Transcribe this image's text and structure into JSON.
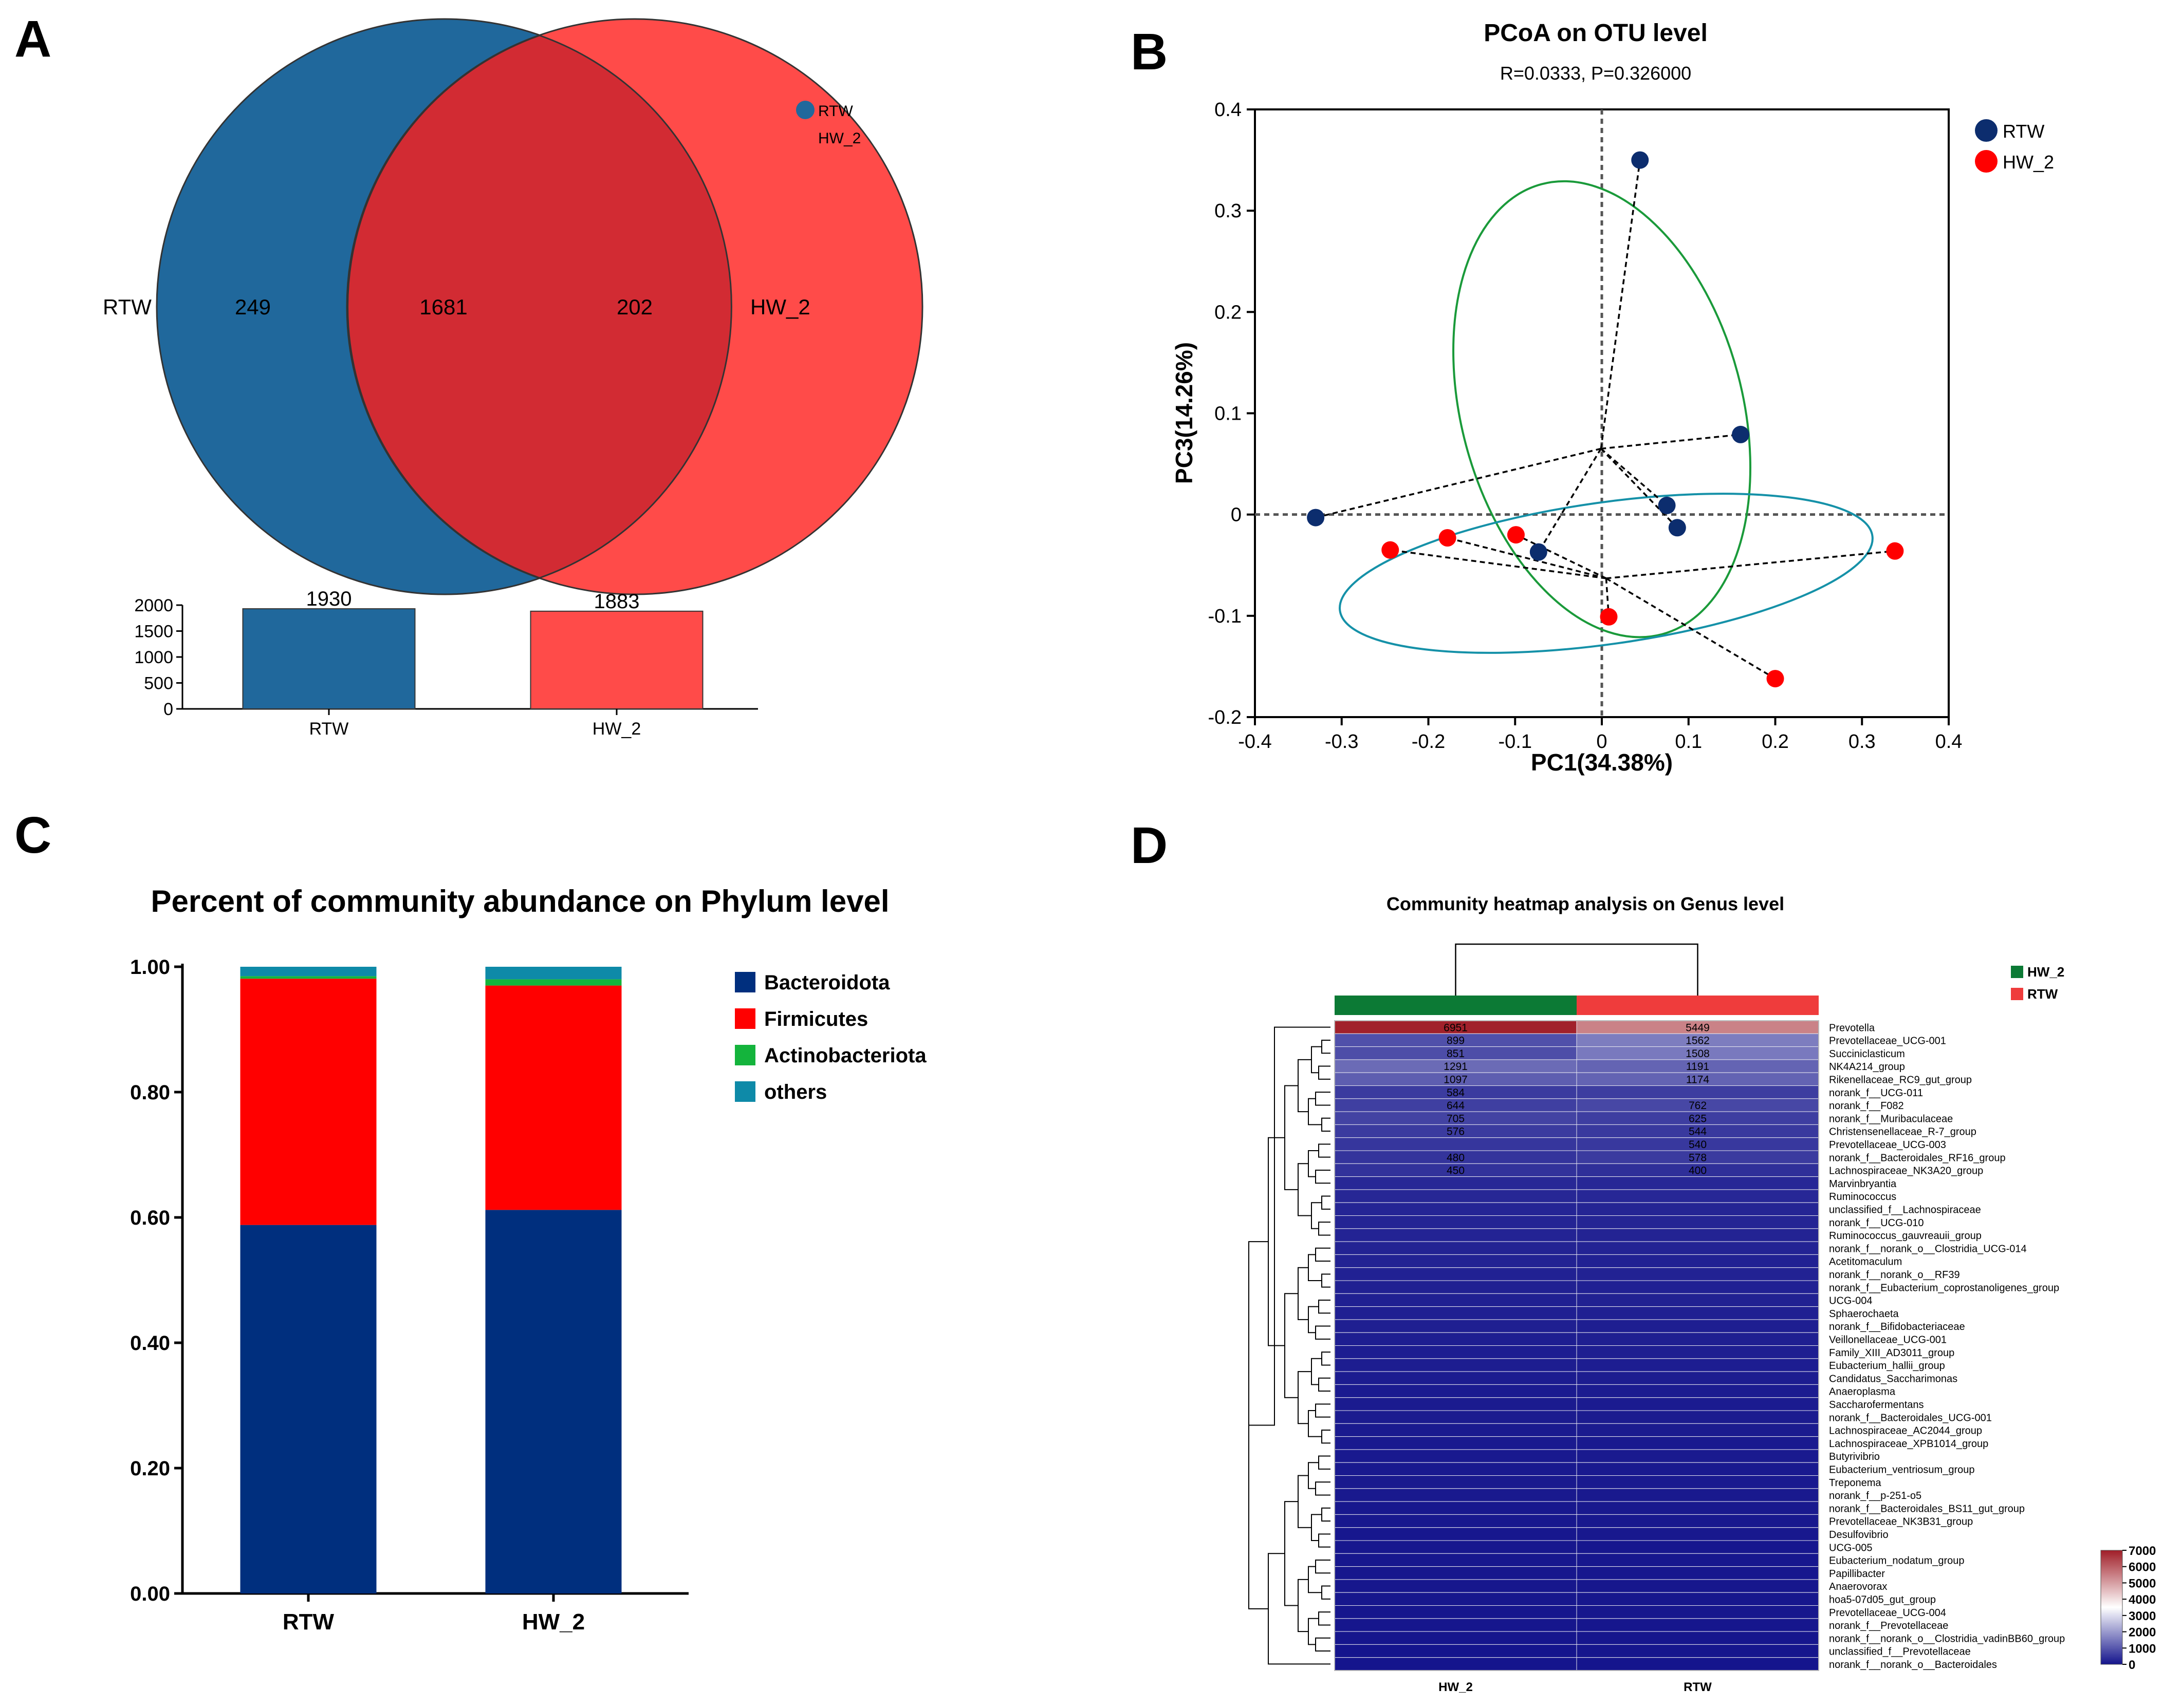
{
  "panel_labels": {
    "a": "A",
    "b": "B",
    "c": "C",
    "d": "D"
  },
  "colors": {
    "rtw_venn": "#20689c",
    "hw2_venn": "#ff4b49",
    "overlap": "#d22b33",
    "rtw_point": "#0c2d6e",
    "hw2_point": "#ff0000",
    "ellipse_rtw": "#1a9a3a",
    "ellipse_hw2": "#1591a8",
    "bacteroidota": "#002f7e",
    "firmicutes": "#ff0000",
    "actinobacteriota": "#14b43c",
    "others": "#0e8aa8",
    "hw2_group": "#0c7a35",
    "rtw_group": "#ef3c3c"
  },
  "chart_data": [
    {
      "type": "venn",
      "panel": "A",
      "sets": [
        {
          "name": "RTW",
          "unique": "249"
        },
        {
          "name": "HW_2",
          "unique": "202"
        }
      ],
      "overlap": "1681",
      "legend": [
        "RTW",
        "HW_2"
      ],
      "bar": {
        "type": "bar",
        "categories": [
          "RTW",
          "HW_2"
        ],
        "values": [
          1930,
          1883
        ],
        "value_labels": [
          "1930",
          "1883"
        ],
        "ylim": [
          0,
          2000
        ],
        "yticks": [
          {
            "v": 0,
            "t": "0"
          },
          {
            "v": 500,
            "t": "500"
          },
          {
            "v": 1000,
            "t": "1000"
          },
          {
            "v": 1500,
            "t": "1500"
          },
          {
            "v": 2000,
            "t": "2000"
          }
        ]
      }
    },
    {
      "type": "scatter",
      "panel": "B",
      "title": "PCoA on OTU level",
      "subtitle": "R=0.0333, P=0.326000",
      "xlabel": "PC1(34.38%)",
      "ylabel": "PC3(14.26%)",
      "xlim": [
        -0.4,
        0.4
      ],
      "ylim": [
        -0.2,
        0.4
      ],
      "xticks": [
        {
          "v": -0.4,
          "t": "-0.4"
        },
        {
          "v": -0.3,
          "t": "-0.3"
        },
        {
          "v": -0.2,
          "t": "-0.2"
        },
        {
          "v": -0.1,
          "t": "-0.1"
        },
        {
          "v": 0,
          "t": "0"
        },
        {
          "v": 0.1,
          "t": "0.1"
        },
        {
          "v": 0.2,
          "t": "0.2"
        },
        {
          "v": 0.3,
          "t": "0.3"
        },
        {
          "v": 0.4,
          "t": "0.4"
        }
      ],
      "yticks": [
        {
          "v": -0.2,
          "t": "-0.2"
        },
        {
          "v": -0.1,
          "t": "-0.1"
        },
        {
          "v": 0,
          "t": "0"
        },
        {
          "v": 0.1,
          "t": "0.1"
        },
        {
          "v": 0.2,
          "t": "0.2"
        },
        {
          "v": 0.3,
          "t": "0.3"
        },
        {
          "v": 0.4,
          "t": "0.4"
        }
      ],
      "series": [
        {
          "name": "RTW",
          "centroid": [
            -0.001,
            0.065
          ],
          "ellipse": {
            "cx": 0.0,
            "cy": 0.104,
            "rx": 0.162,
            "ry": 0.23,
            "angle": -15
          },
          "points": [
            [
              0.044,
              0.35
            ],
            [
              -0.33,
              -0.003
            ],
            [
              0.16,
              0.079
            ],
            [
              0.075,
              0.009
            ],
            [
              0.087,
              -0.013
            ],
            [
              -0.073,
              -0.037
            ]
          ]
        },
        {
          "name": "HW_2",
          "centroid": [
            0.005,
            -0.063
          ],
          "ellipse": {
            "cx": 0.005,
            "cy": -0.058,
            "rx": 0.31,
            "ry": 0.07,
            "angle": -8
          },
          "points": [
            [
              -0.244,
              -0.035
            ],
            [
              -0.178,
              -0.023
            ],
            [
              -0.099,
              -0.02
            ],
            [
              0.008,
              -0.101
            ],
            [
              0.2,
              -0.162
            ],
            [
              0.338,
              -0.036
            ]
          ]
        }
      ]
    },
    {
      "type": "bar",
      "stacked": true,
      "panel": "C",
      "title": "Percent of community abundance on Phylum level",
      "categories": [
        "RTW",
        "HW_2"
      ],
      "series": [
        {
          "name": "Bacteroidota",
          "values": [
            0.588,
            0.612
          ]
        },
        {
          "name": "Firmicutes",
          "values": [
            0.393,
            0.358
          ]
        },
        {
          "name": "Actinobacteriota",
          "values": [
            0.004,
            0.01
          ]
        },
        {
          "name": "others",
          "values": [
            0.015,
            0.02
          ]
        }
      ],
      "ylim": [
        0,
        1
      ],
      "yticks": [
        {
          "v": 0,
          "t": "0.00"
        },
        {
          "v": 0.2,
          "t": "0.20"
        },
        {
          "v": 0.4,
          "t": "0.40"
        },
        {
          "v": 0.6,
          "t": "0.60"
        },
        {
          "v": 0.8,
          "t": "0.80"
        },
        {
          "v": 1.0,
          "t": "1.00"
        }
      ]
    },
    {
      "type": "heatmap",
      "panel": "D",
      "title": "Community heatmap analysis on Genus level",
      "columns": [
        "HW_2",
        "RTW"
      ],
      "legend": [
        "HW_2",
        "RTW"
      ],
      "colorbar": {
        "min": 0,
        "max": 7000,
        "ticks": [
          {
            "v": 7000,
            "t": "7000"
          },
          {
            "v": 6000,
            "t": "6000"
          },
          {
            "v": 5000,
            "t": "5000"
          },
          {
            "v": 4000,
            "t": "4000"
          },
          {
            "v": 3000,
            "t": "3000"
          },
          {
            "v": 2000,
            "t": "2000"
          },
          {
            "v": 1000,
            "t": "1000"
          },
          {
            "v": 0,
            "t": "0"
          }
        ]
      },
      "rows": [
        {
          "name": "Prevotella",
          "values": [
            6951,
            5449
          ],
          "labels": [
            "6951",
            "5449"
          ]
        },
        {
          "name": "Prevotellaceae_UCG-001",
          "values": [
            899,
            1562
          ],
          "labels": [
            "899",
            "1562"
          ]
        },
        {
          "name": "Succiniclasticum",
          "values": [
            851,
            1508
          ],
          "labels": [
            "851",
            "1508"
          ]
        },
        {
          "name": "NK4A214_group",
          "values": [
            1291,
            1191
          ],
          "labels": [
            "1291",
            "1191"
          ]
        },
        {
          "name": "Rikenellaceae_RC9_gut_group",
          "values": [
            1097,
            1174
          ],
          "labels": [
            "1097",
            "1174"
          ]
        },
        {
          "name": "norank_f__UCG-011",
          "values": [
            584,
            607
          ],
          "labels": [
            "584",
            ""
          ]
        },
        {
          "name": "norank_f__F082",
          "values": [
            644,
            762
          ],
          "labels": [
            "644",
            "762"
          ]
        },
        {
          "name": "norank_f__Muribaculaceae",
          "values": [
            705,
            625
          ],
          "labels": [
            "705",
            "625"
          ]
        },
        {
          "name": "Christensenellaceae_R-7_group",
          "values": [
            576,
            544
          ],
          "labels": [
            "576",
            "544"
          ]
        },
        {
          "name": "Prevotellaceae_UCG-003",
          "values": [
            512,
            540
          ],
          "labels": [
            "",
            "540"
          ]
        },
        {
          "name": "norank_f__Bacteroidales_RF16_group",
          "values": [
            480,
            578
          ],
          "labels": [
            "480",
            "578"
          ]
        },
        {
          "name": "Lachnospiraceae_NK3A20_group",
          "values": [
            450,
            400
          ],
          "labels": [
            "450",
            "400"
          ]
        },
        {
          "name": "Marvinbryantia",
          "values": [
            300,
            290
          ],
          "labels": [
            "",
            ""
          ]
        },
        {
          "name": "Ruminococcus",
          "values": [
            280,
            290
          ],
          "labels": [
            "",
            ""
          ]
        },
        {
          "name": "unclassified_f__Lachnospiraceae",
          "values": [
            260,
            250
          ],
          "labels": [
            "",
            ""
          ]
        },
        {
          "name": "norank_f__UCG-010",
          "values": [
            240,
            250
          ],
          "labels": [
            "",
            ""
          ]
        },
        {
          "name": "Ruminococcus_gauvreauii_group",
          "values": [
            230,
            220
          ],
          "labels": [
            "",
            ""
          ]
        },
        {
          "name": "norank_f__norank_o__Clostridia_UCG-014",
          "values": [
            220,
            230
          ],
          "labels": [
            "",
            ""
          ]
        },
        {
          "name": "Acetitomaculum",
          "values": [
            210,
            200
          ],
          "labels": [
            "",
            ""
          ]
        },
        {
          "name": "norank_f__norank_o__RF39",
          "values": [
            200,
            210
          ],
          "labels": [
            "",
            ""
          ]
        },
        {
          "name": "norank_f__Eubacterium_coprostanoligenes_group",
          "values": [
            190,
            200
          ],
          "labels": [
            "",
            ""
          ]
        },
        {
          "name": "UCG-004",
          "values": [
            180,
            190
          ],
          "labels": [
            "",
            ""
          ]
        },
        {
          "name": "Sphaerochaeta",
          "values": [
            170,
            180
          ],
          "labels": [
            "",
            ""
          ]
        },
        {
          "name": "norank_f__Bifidobacteriaceae",
          "values": [
            160,
            150
          ],
          "labels": [
            "",
            ""
          ]
        },
        {
          "name": "Veillonellaceae_UCG-001",
          "values": [
            150,
            160
          ],
          "labels": [
            "",
            ""
          ]
        },
        {
          "name": "Family_XIII_AD3011_group",
          "values": [
            140,
            150
          ],
          "labels": [
            "",
            ""
          ]
        },
        {
          "name": "Eubacterium_hallii_group",
          "values": [
            130,
            140
          ],
          "labels": [
            "",
            ""
          ]
        },
        {
          "name": "Candidatus_Saccharimonas",
          "values": [
            120,
            130
          ],
          "labels": [
            "",
            ""
          ]
        },
        {
          "name": "Anaeroplasma",
          "values": [
            110,
            120
          ],
          "labels": [
            "",
            ""
          ]
        },
        {
          "name": "Saccharofermentans",
          "values": [
            100,
            110
          ],
          "labels": [
            "",
            ""
          ]
        },
        {
          "name": "norank_f__Bacteroidales_UCG-001",
          "values": [
            100,
            100
          ],
          "labels": [
            "",
            ""
          ]
        },
        {
          "name": "Lachnospiraceae_AC2044_group",
          "values": [
            90,
            100
          ],
          "labels": [
            "",
            ""
          ]
        },
        {
          "name": "Lachnospiraceae_XPB1014_group",
          "values": [
            90,
            90
          ],
          "labels": [
            "",
            ""
          ]
        },
        {
          "name": "Butyrivibrio",
          "values": [
            80,
            90
          ],
          "labels": [
            "",
            ""
          ]
        },
        {
          "name": "Eubacterium_ventriosum_group",
          "values": [
            80,
            80
          ],
          "labels": [
            "",
            ""
          ]
        },
        {
          "name": "Treponema",
          "values": [
            70,
            80
          ],
          "labels": [
            "",
            ""
          ]
        },
        {
          "name": "norank_f__p-251-o5",
          "values": [
            70,
            70
          ],
          "labels": [
            "",
            ""
          ]
        },
        {
          "name": "norank_f__Bacteroidales_BS11_gut_group",
          "values": [
            60,
            70
          ],
          "labels": [
            "",
            ""
          ]
        },
        {
          "name": "Prevotellaceae_NK3B31_group",
          "values": [
            60,
            60
          ],
          "labels": [
            "",
            ""
          ]
        },
        {
          "name": "Desulfovibrio",
          "values": [
            50,
            60
          ],
          "labels": [
            "",
            ""
          ]
        },
        {
          "name": "UCG-005",
          "values": [
            50,
            50
          ],
          "labels": [
            "",
            ""
          ]
        },
        {
          "name": "Eubacterium_nodatum_group",
          "values": [
            50,
            50
          ],
          "labels": [
            "",
            ""
          ]
        },
        {
          "name": "Papillibacter",
          "values": [
            40,
            50
          ],
          "labels": [
            "",
            ""
          ]
        },
        {
          "name": "Anaerovorax",
          "values": [
            40,
            40
          ],
          "labels": [
            "",
            ""
          ]
        },
        {
          "name": "hoa5-07d05_gut_group",
          "values": [
            40,
            40
          ],
          "labels": [
            "",
            ""
          ]
        },
        {
          "name": "Prevotellaceae_UCG-004",
          "values": [
            30,
            40
          ],
          "labels": [
            "",
            ""
          ]
        },
        {
          "name": "norank_f__Prevotellaceae",
          "values": [
            30,
            30
          ],
          "labels": [
            "",
            ""
          ]
        },
        {
          "name": "norank_f__norank_o__Clostridia_vadinBB60_group",
          "values": [
            30,
            30
          ],
          "labels": [
            "",
            ""
          ]
        },
        {
          "name": "unclassified_f__Prevotellaceae",
          "values": [
            20,
            30
          ],
          "labels": [
            "",
            ""
          ]
        },
        {
          "name": "norank_f__norank_o__Bacteroidales",
          "values": [
            20,
            20
          ],
          "labels": [
            "",
            ""
          ]
        }
      ]
    }
  ]
}
